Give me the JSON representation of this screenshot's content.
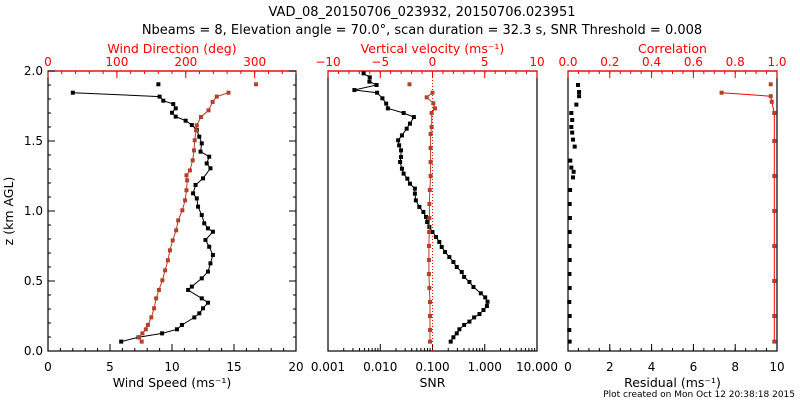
{
  "title": {
    "line1": "VAD_08_20150706_023932, 20150706.023951",
    "line2": "Nbeams = 8, Elevation angle = 70.0°, scan duration = 32.3 s, SNR Threshold = 0.008"
  },
  "footer": "Plot created on Mon Oct 12 20:38:18 2015",
  "colors": {
    "axis_top": "#ff0000",
    "series_red": "#b3402a",
    "series_black": "#000000"
  },
  "chart_data": [
    {
      "type": "line",
      "ylabel": "z (km AGL)",
      "ylim": [
        0,
        2
      ],
      "yticks": [
        {
          "v": 0,
          "label": "0.0"
        },
        {
          "v": 0.5,
          "label": "0.5"
        },
        {
          "v": 1,
          "label": "1.0"
        },
        {
          "v": 1.5,
          "label": "1.5"
        },
        {
          "v": 2,
          "label": "2.0"
        }
      ],
      "bottom_axis": {
        "label": "Wind Speed (ms⁻¹)",
        "scale": "linear",
        "range": [
          0,
          20
        ],
        "ticks": [
          {
            "v": 0,
            "label": "0"
          },
          {
            "v": 5,
            "label": "5"
          },
          {
            "v": 10,
            "label": "10"
          },
          {
            "v": 15,
            "label": "15"
          },
          {
            "v": 20,
            "label": "20"
          }
        ]
      },
      "top_axis": {
        "label": "Wind Direction (deg)",
        "scale": "linear",
        "range": [
          0,
          360
        ],
        "ticks": [
          {
            "v": 0,
            "label": "0"
          },
          {
            "v": 100,
            "label": "100"
          },
          {
            "v": 200,
            "label": "200"
          },
          {
            "v": 300,
            "label": "300"
          }
        ]
      },
      "series": [
        {
          "name": "Wind Speed",
          "axis": "bottom",
          "color": "#000000",
          "points": [
            [
              0.067,
              5.9
            ],
            [
              0.098,
              7.3
            ],
            [
              0.126,
              9.2
            ],
            [
              0.155,
              10.4
            ],
            [
              0.186,
              10.8
            ],
            [
              0.24,
              11.8
            ],
            [
              0.269,
              12.2
            ],
            [
              0.305,
              12.5
            ],
            [
              0.345,
              12.9
            ],
            [
              0.376,
              12.4
            ],
            [
              0.436,
              11.3
            ],
            [
              0.46,
              11.6
            ],
            [
              0.519,
              12.4
            ],
            [
              0.567,
              12.9
            ],
            [
              0.626,
              13.1
            ],
            [
              0.686,
              13.3
            ],
            [
              0.745,
              13.0
            ],
            [
              0.793,
              12.7
            ],
            [
              0.852,
              13.3
            ],
            [
              0.876,
              12.9
            ],
            [
              0.912,
              12.6
            ],
            [
              0.971,
              12.4
            ],
            [
              1.031,
              12.1
            ],
            [
              1.09,
              12.0
            ],
            [
              1.126,
              11.7
            ],
            [
              1.186,
              11.9
            ],
            [
              1.233,
              12.5
            ],
            [
              1.305,
              13.1
            ],
            [
              1.34,
              12.8
            ],
            [
              1.388,
              13.0
            ],
            [
              1.424,
              12.3
            ],
            [
              1.483,
              12.4
            ],
            [
              1.531,
              12.2
            ],
            [
              1.579,
              12.0
            ],
            [
              1.614,
              11.6
            ],
            [
              1.645,
              11.1
            ],
            [
              1.674,
              10.3
            ],
            [
              1.702,
              10.0
            ],
            [
              1.733,
              10.3
            ],
            [
              1.764,
              10.1
            ],
            [
              1.788,
              9.3
            ],
            [
              1.817,
              9.0
            ],
            [
              1.845,
              2.0
            ]
          ],
          "isolated": [
            [
              1.905,
              8.9
            ]
          ]
        },
        {
          "name": "Wind Direction",
          "axis": "top",
          "color": "#b3402a",
          "points": [
            [
              0.067,
              136
            ],
            [
              0.098,
              132
            ],
            [
              0.126,
              137
            ],
            [
              0.155,
              142
            ],
            [
              0.186,
              145
            ],
            [
              0.24,
              150
            ],
            [
              0.305,
              154
            ],
            [
              0.376,
              157
            ],
            [
              0.436,
              161
            ],
            [
              0.505,
              166
            ],
            [
              0.576,
              170
            ],
            [
              0.648,
              174
            ],
            [
              0.719,
              177
            ],
            [
              0.79,
              181
            ],
            [
              0.862,
              186
            ],
            [
              0.933,
              189
            ],
            [
              1.005,
              195
            ],
            [
              1.076,
              199
            ],
            [
              1.148,
              201
            ],
            [
              1.219,
              202
            ],
            [
              1.255,
              201
            ],
            [
              1.29,
              206
            ],
            [
              1.362,
              210
            ],
            [
              1.433,
              212
            ],
            [
              1.505,
              213
            ],
            [
              1.576,
              215
            ],
            [
              1.612,
              216
            ],
            [
              1.671,
              222
            ],
            [
              1.719,
              233
            ],
            [
              1.779,
              239
            ],
            [
              1.817,
              245
            ],
            [
              1.845,
              262
            ]
          ],
          "isolated": [
            [
              1.905,
              302
            ]
          ]
        }
      ]
    },
    {
      "type": "line",
      "ylim": [
        0,
        2
      ],
      "bottom_axis": {
        "label": "SNR",
        "scale": "log",
        "range": [
          0.001,
          10
        ],
        "ticks": [
          {
            "v": 0.001,
            "label": "0.001"
          },
          {
            "v": 0.01,
            "label": "0.010"
          },
          {
            "v": 0.1,
            "label": "0.100"
          },
          {
            "v": 1,
            "label": "1.000"
          },
          {
            "v": 10,
            "label": "10.000"
          }
        ]
      },
      "top_axis": {
        "label": "Vertical velocity (ms⁻¹)",
        "scale": "linear",
        "range": [
          -10,
          10
        ],
        "ticks": [
          {
            "v": -10,
            "label": "−10"
          },
          {
            "v": -5,
            "label": "−5"
          },
          {
            "v": 0,
            "label": "0"
          },
          {
            "v": 5,
            "label": "5"
          },
          {
            "v": 10,
            "label": "10"
          }
        ]
      },
      "series": [
        {
          "name": "SNR",
          "axis": "bottom",
          "color": "#000000",
          "points": [
            [
              0.067,
              0.223
            ],
            [
              0.098,
              0.251
            ],
            [
              0.126,
              0.291
            ],
            [
              0.155,
              0.327
            ],
            [
              0.186,
              0.403
            ],
            [
              0.21,
              0.509
            ],
            [
              0.24,
              0.627
            ],
            [
              0.264,
              0.792
            ],
            [
              0.293,
              0.946
            ],
            [
              0.321,
              1.1
            ],
            [
              0.352,
              1.13
            ],
            [
              0.383,
              1.02
            ],
            [
              0.412,
              0.841
            ],
            [
              0.457,
              0.608
            ],
            [
              0.493,
              0.509
            ],
            [
              0.529,
              0.403
            ],
            [
              0.564,
              0.363
            ],
            [
              0.6,
              0.291
            ],
            [
              0.636,
              0.251
            ],
            [
              0.671,
              0.21
            ],
            [
              0.707,
              0.174
            ],
            [
              0.743,
              0.15
            ],
            [
              0.779,
              0.135
            ],
            [
              0.814,
              0.117
            ],
            [
              0.85,
              0.1
            ],
            [
              0.886,
              0.087
            ],
            [
              0.921,
              0.079
            ],
            [
              0.957,
              0.075
            ],
            [
              0.993,
              0.067
            ],
            [
              1.029,
              0.056
            ],
            [
              1.076,
              0.048
            ],
            [
              1.124,
              0.046
            ],
            [
              1.16,
              0.046
            ],
            [
              1.195,
              0.037
            ],
            [
              1.231,
              0.033
            ],
            [
              1.267,
              0.028
            ],
            [
              1.302,
              0.026
            ],
            [
              1.35,
              0.024
            ],
            [
              1.386,
              0.025
            ],
            [
              1.433,
              0.025
            ],
            [
              1.469,
              0.023
            ],
            [
              1.505,
              0.022
            ],
            [
              1.54,
              0.026
            ],
            [
              1.588,
              0.032
            ],
            [
              1.624,
              0.037
            ],
            [
              1.671,
              0.044
            ],
            [
              1.7,
              0.028
            ],
            [
              1.733,
              0.014
            ],
            [
              1.767,
              0.013
            ],
            [
              1.805,
              0.011
            ],
            [
              1.845,
              0.0087
            ],
            [
              1.864,
              0.0032
            ],
            [
              1.9,
              0.0085
            ],
            [
              1.924,
              0.0062
            ],
            [
              1.955,
              0.0063
            ],
            [
              1.983,
              0.0048
            ]
          ]
        },
        {
          "name": "Vertical velocity",
          "axis": "top",
          "color": "#b3402a",
          "points": [
            [
              0.067,
              -0.24
            ],
            [
              0.15,
              -0.24
            ],
            [
              0.25,
              -0.24
            ],
            [
              0.35,
              -0.24
            ],
            [
              0.45,
              -0.3
            ],
            [
              0.55,
              -0.34
            ],
            [
              0.65,
              -0.34
            ],
            [
              0.75,
              -0.34
            ],
            [
              0.85,
              -0.32
            ],
            [
              0.95,
              -0.3
            ],
            [
              1.05,
              -0.3
            ],
            [
              1.15,
              -0.26
            ],
            [
              1.25,
              -0.18
            ],
            [
              1.35,
              -0.18
            ],
            [
              1.45,
              -0.18
            ],
            [
              1.55,
              -0.18
            ],
            [
              1.6,
              -0.08
            ],
            [
              1.7,
              -0.08
            ],
            [
              1.733,
              0.24
            ],
            [
              1.769,
              0.08
            ],
            [
              1.812,
              -0.56
            ],
            [
              1.845,
              0.0
            ]
          ],
          "isolated": [
            [
              1.905,
              -2.2
            ]
          ]
        }
      ]
    },
    {
      "type": "line",
      "ylim": [
        0,
        2
      ],
      "bottom_axis": {
        "label": "Residual (ms⁻¹)",
        "scale": "linear",
        "range": [
          0,
          10
        ],
        "ticks": [
          {
            "v": 0,
            "label": "0"
          },
          {
            "v": 2,
            "label": "2"
          },
          {
            "v": 4,
            "label": "4"
          },
          {
            "v": 6,
            "label": "6"
          },
          {
            "v": 8,
            "label": "8"
          },
          {
            "v": 10,
            "label": "10"
          }
        ]
      },
      "top_axis": {
        "label": "Correlation",
        "scale": "linear",
        "range": [
          0,
          1
        ],
        "ticks": [
          {
            "v": 0,
            "label": "0.0"
          },
          {
            "v": 0.2,
            "label": "0.2"
          },
          {
            "v": 0.4,
            "label": "0.4"
          },
          {
            "v": 0.6,
            "label": "0.6"
          },
          {
            "v": 0.8,
            "label": "0.8"
          },
          {
            "v": 1,
            "label": "1.0"
          }
        ]
      },
      "series": [
        {
          "name": "Residual",
          "axis": "bottom",
          "color": "#000000",
          "markers_only": true,
          "points": [
            [
              0.067,
              0.08
            ],
            [
              0.15,
              0.06
            ],
            [
              0.25,
              0.08
            ],
            [
              0.35,
              0.06
            ],
            [
              0.45,
              0.08
            ],
            [
              0.55,
              0.07
            ],
            [
              0.65,
              0.08
            ],
            [
              0.75,
              0.07
            ],
            [
              0.85,
              0.08
            ],
            [
              0.95,
              0.09
            ],
            [
              1.05,
              0.08
            ],
            [
              1.15,
              0.1
            ],
            [
              1.24,
              0.24
            ],
            [
              1.28,
              0.27
            ],
            [
              1.31,
              0.16
            ],
            [
              1.36,
              0.11
            ],
            [
              1.46,
              0.32
            ],
            [
              1.51,
              0.24
            ],
            [
              1.56,
              0.2
            ],
            [
              1.6,
              0.16
            ],
            [
              1.65,
              0.2
            ],
            [
              1.7,
              0.16
            ],
            [
              1.76,
              0.4
            ],
            [
              1.82,
              0.53
            ],
            [
              1.85,
              0.53
            ],
            [
              1.9,
              0.48
            ]
          ]
        },
        {
          "name": "Correlation",
          "axis": "top",
          "color": "#b3402a",
          "points": [
            [
              0.067,
              0.987
            ],
            [
              0.25,
              0.987
            ],
            [
              0.5,
              0.987
            ],
            [
              0.75,
              0.987
            ],
            [
              1.0,
              0.987
            ],
            [
              1.25,
              0.987
            ],
            [
              1.5,
              0.987
            ],
            [
              1.7,
              0.987
            ],
            [
              1.78,
              0.975
            ],
            [
              1.82,
              0.97
            ],
            [
              1.845,
              0.735
            ]
          ],
          "isolated": [
            [
              1.905,
              0.97
            ]
          ]
        }
      ]
    }
  ]
}
